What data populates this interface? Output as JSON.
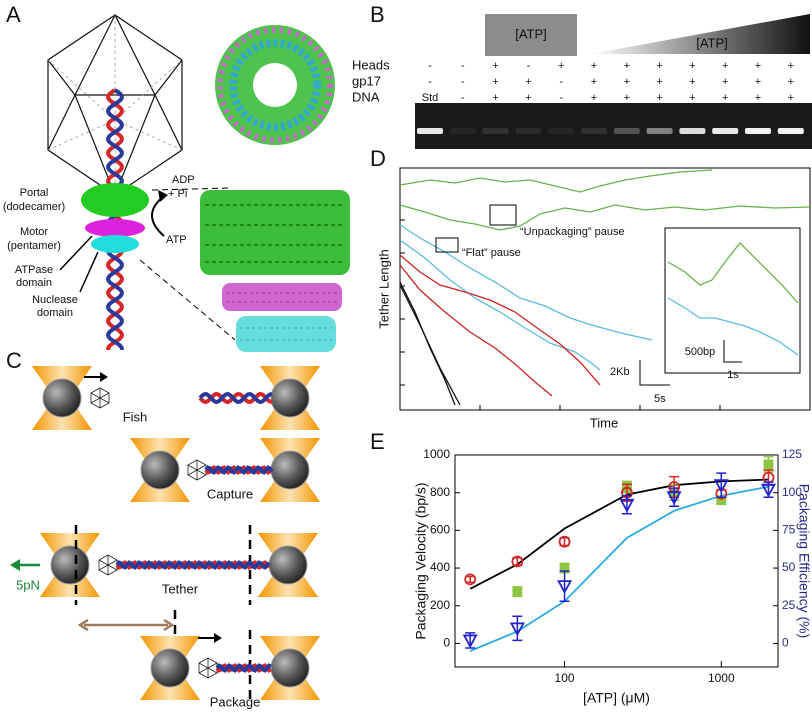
{
  "panels": {
    "A": {
      "letter": "A",
      "portal": "Portal",
      "portal_sub": "(dodecamer)",
      "motor": "Motor",
      "motor_sub": "(pentamer)",
      "atpase": "ATPase",
      "atpase_sub": "domain",
      "nuclease": "Nuclease",
      "nuclease_sub": "domain",
      "adp": "ADP",
      "pi": "+ Pi",
      "atp": "ATP"
    },
    "B": {
      "letter": "B",
      "atp_box": "[ATP]",
      "atp_gradient": "[ATP]",
      "rows": [
        {
          "label": "Heads",
          "marks": [
            "-",
            "-",
            "+",
            "-",
            "+",
            "+",
            "+",
            "+",
            "+",
            "+",
            "+",
            "+"
          ]
        },
        {
          "label": "gp17",
          "marks": [
            "-",
            "-",
            "+",
            "+",
            "-",
            "+",
            "+",
            "+",
            "+",
            "+",
            "+",
            "+"
          ]
        },
        {
          "label": "DNA",
          "marks": [
            "Std",
            "-",
            "+",
            "+",
            "-",
            "+",
            "+",
            "+",
            "+",
            "+",
            "+",
            "+"
          ]
        }
      ]
    },
    "C": {
      "letter": "C",
      "fish": "Fish",
      "capture": "Capture",
      "tether": "Tether",
      "package": "Package",
      "force": "5pN"
    },
    "D": {
      "letter": "D",
      "ylabel": "Tether Length",
      "xlabel": "Time",
      "unpack": "“Unpackaging” pause",
      "flat": "“Flat” pause",
      "scale_y": "2Kb",
      "scale_x": "5s",
      "inset_y": "500bp",
      "inset_x": "1s"
    },
    "E": {
      "letter": "E"
    }
  },
  "chart_data": {
    "type": "scatter",
    "xlabel": "[ATP] (μM)",
    "ylabel": "Packaging Velocity (bp/s)",
    "y2label": "Packaging Efficiency (%)",
    "xscale": "log",
    "xlim": [
      20,
      2300
    ],
    "xticks": [
      100,
      1000
    ],
    "ylim": [
      -125,
      1000
    ],
    "yticks": [
      0,
      200,
      400,
      600,
      800,
      1000
    ],
    "y2lim": [
      -15.625,
      125
    ],
    "y2ticks": [
      0,
      25,
      50,
      75,
      100,
      125
    ],
    "x": [
      25,
      50,
      100,
      250,
      500,
      1000,
      2000
    ],
    "series": [
      {
        "color": "#000000",
        "style": "line",
        "values": [
          290,
          420,
          610,
          790,
          840,
          860,
          870
        ]
      },
      {
        "color": "#29abe2",
        "style": "line",
        "axis": "y2",
        "values": [
          -5,
          8,
          28,
          70,
          88,
          98,
          104
        ]
      },
      {
        "color": "#8cc63f",
        "style": "square",
        "values": [
          null,
          275,
          400,
          830,
          800,
          760,
          950
        ],
        "errors": [
          null,
          25,
          25,
          30,
          40,
          20,
          40
        ]
      },
      {
        "color": "#d62728",
        "style": "circle",
        "values": [
          340,
          435,
          540,
          800,
          830,
          795,
          880
        ],
        "errors": [
          15,
          20,
          20,
          45,
          55,
          20,
          40
        ]
      },
      {
        "color": "#2222cc",
        "style": "triangle",
        "axis": "y2",
        "values": [
          2,
          10,
          38,
          92,
          97,
          105,
          102
        ],
        "errors": [
          5,
          8,
          10,
          6,
          6,
          8,
          5
        ]
      }
    ]
  }
}
